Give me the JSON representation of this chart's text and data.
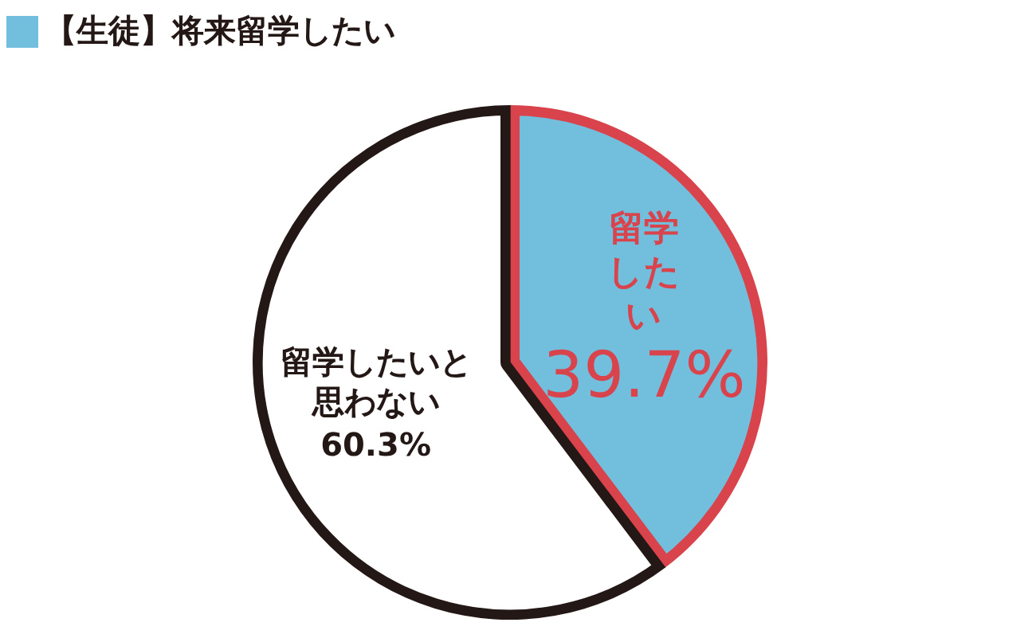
{
  "chart_data": {
    "type": "pie",
    "title": "【生徒】将来留学したい",
    "categories": [
      "留学したい",
      "留学したいと思わない"
    ],
    "values": [
      39.7,
      60.3
    ],
    "colors": [
      "#72bedd",
      "#ffffff"
    ],
    "value_labels": [
      "39.7%",
      "60.3%"
    ],
    "legend": false
  }
}
